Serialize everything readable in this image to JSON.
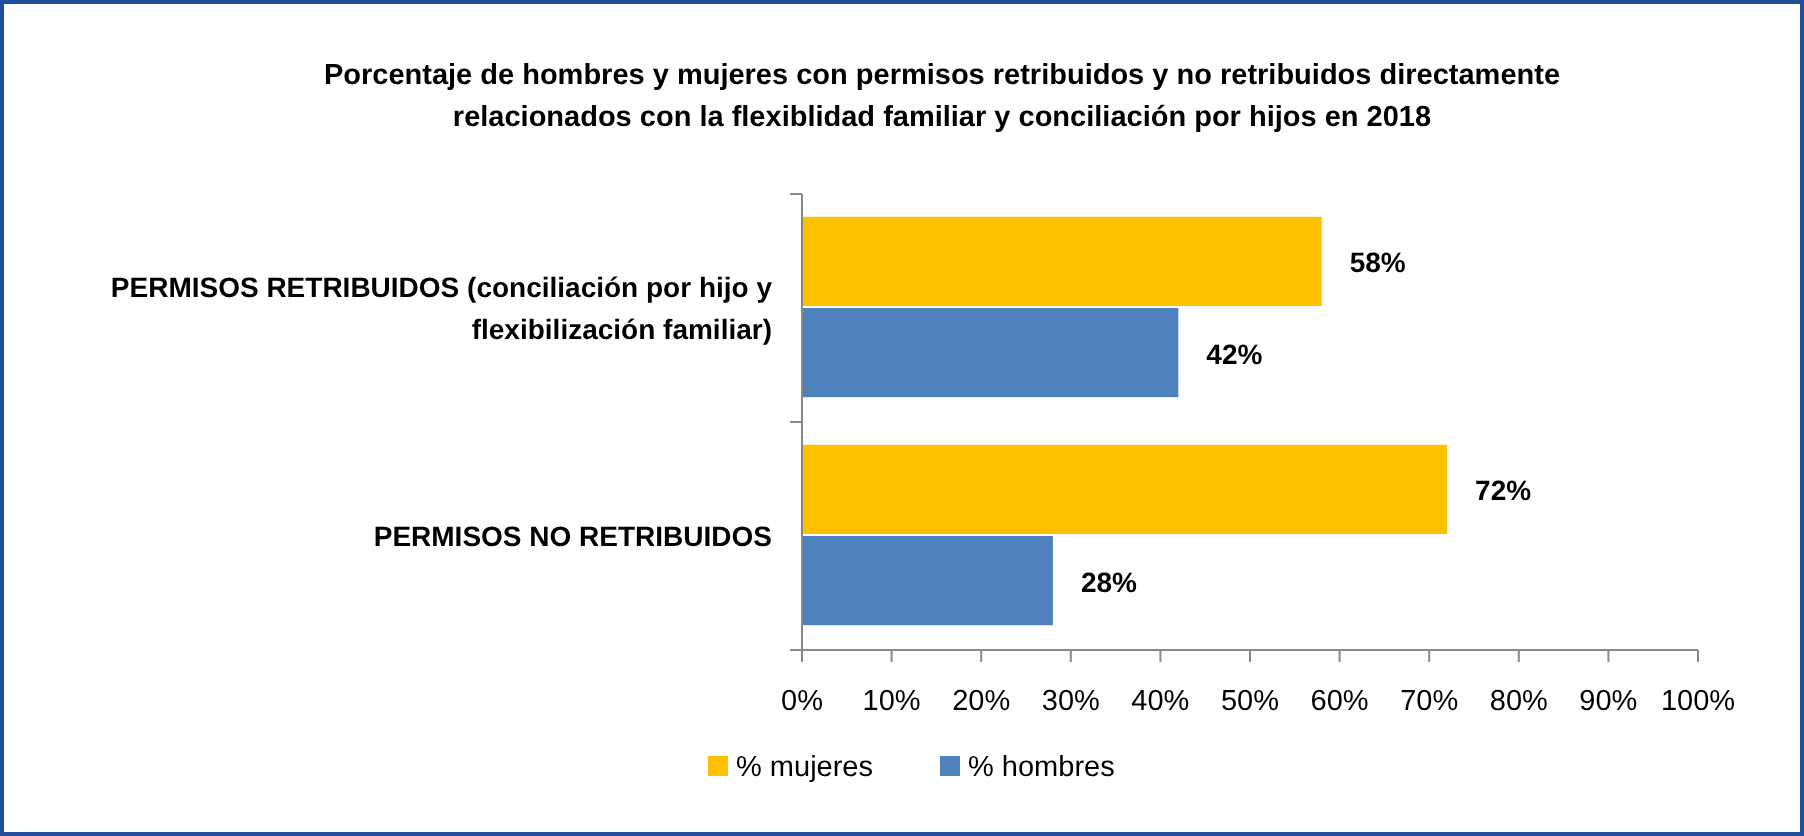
{
  "chart_data": {
    "type": "bar",
    "orientation": "horizontal",
    "title": "Porcentaje de hombres y mujeres con permisos retribuidos y no retribuidos directamente relacionados con la flexiblidad familiar  y conciliación  por hijos en 2018",
    "categories": [
      "PERMISOS RETRIBUIDOS (conciliación por hijo y flexibilización familiar)",
      "PERMISOS NO RETRIBUIDOS"
    ],
    "series": [
      {
        "name": "% mujeres",
        "color": "#ffc000",
        "values": [
          58,
          72
        ],
        "value_labels": [
          "58%",
          "72%"
        ]
      },
      {
        "name": "% hombres",
        "color": "#4f81bd",
        "values": [
          42,
          28
        ],
        "value_labels": [
          "42%",
          "28%"
        ]
      }
    ],
    "xlim": [
      0,
      100
    ],
    "xticks": [
      {
        "value": 0,
        "label": "0%"
      },
      {
        "value": 10,
        "label": "10%"
      },
      {
        "value": 20,
        "label": "20%"
      },
      {
        "value": 30,
        "label": "30%"
      },
      {
        "value": 40,
        "label": "40%"
      },
      {
        "value": 50,
        "label": "50%"
      },
      {
        "value": 60,
        "label": "60%"
      },
      {
        "value": 70,
        "label": "70%"
      },
      {
        "value": 80,
        "label": "80%"
      },
      {
        "value": 90,
        "label": "90%"
      },
      {
        "value": 100,
        "label": "100%"
      }
    ],
    "grid": false,
    "legend": "bottom"
  }
}
